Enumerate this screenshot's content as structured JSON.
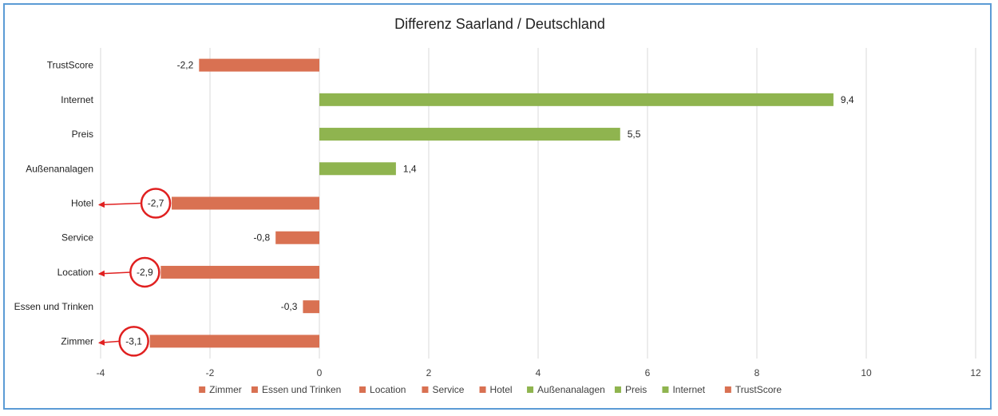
{
  "chart_data": {
    "type": "bar",
    "orientation": "horizontal",
    "title": "Differenz Saarland / Deutschland",
    "categories": [
      "Zimmer",
      "Essen und Trinken",
      "Location",
      "Service",
      "Hotel",
      "Außenanalagen",
      "Preis",
      "Internet",
      "TrustScore"
    ],
    "values": [
      -3.1,
      -0.3,
      -2.9,
      -0.8,
      -2.7,
      1.4,
      5.5,
      9.4,
      -2.2
    ],
    "value_labels": [
      "-3,1",
      "-0,3",
      "-2,9",
      "-0,8",
      "-2,7",
      "1,4",
      "5,5",
      "9,4",
      "-2,2"
    ],
    "bar_colors": [
      "#d97152",
      "#d97152",
      "#d97152",
      "#d97152",
      "#d97152",
      "#8fb44f",
      "#8fb44f",
      "#8fb44f",
      "#d97152"
    ],
    "highlighted": [
      "Zimmer",
      "Location",
      "Hotel"
    ],
    "highlight_color": "#e02020",
    "xlim": [
      -4,
      12
    ],
    "xticks": [
      -4,
      -2,
      0,
      2,
      4,
      6,
      8,
      10,
      12
    ],
    "xlabel": "",
    "ylabel": "",
    "grid": "vertical",
    "legend_position": "bottom",
    "legend": [
      {
        "label": "Zimmer",
        "color": "#d97152"
      },
      {
        "label": "Essen und Trinken",
        "color": "#d97152"
      },
      {
        "label": "Location",
        "color": "#d97152"
      },
      {
        "label": "Service",
        "color": "#d97152"
      },
      {
        "label": "Hotel",
        "color": "#d97152"
      },
      {
        "label": "Außenanalagen",
        "color": "#8fb44f"
      },
      {
        "label": "Preis",
        "color": "#8fb44f"
      },
      {
        "label": "Internet",
        "color": "#8fb44f"
      },
      {
        "label": "TrustScore",
        "color": "#d97152"
      }
    ],
    "frame_color": "#5b9bd5"
  }
}
